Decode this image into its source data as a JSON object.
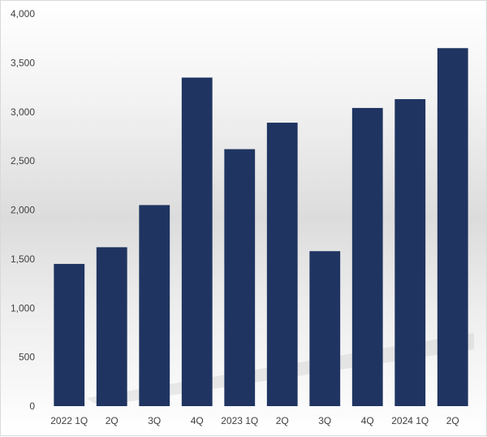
{
  "chart_data": {
    "type": "bar",
    "categories": [
      "2022 1Q",
      "2Q",
      "3Q",
      "4Q",
      "2023 1Q",
      "2Q",
      "3Q",
      "4Q",
      "2024 1Q",
      "2Q"
    ],
    "values": [
      1450,
      1620,
      2050,
      3350,
      2620,
      2890,
      1580,
      3040,
      3130,
      3650
    ],
    "title": "",
    "xlabel": "",
    "ylabel": "",
    "ylim": [
      0,
      4000
    ],
    "yticks": [
      "0",
      "500",
      "1,000",
      "1,500",
      "2,000",
      "2,500",
      "3,000",
      "3,500",
      "4,000"
    ],
    "ytick_values": [
      0,
      500,
      1000,
      1500,
      2000,
      2500,
      3000,
      3500,
      4000
    ],
    "grid": false,
    "legend": "none",
    "bar_color": "#1f3461"
  }
}
